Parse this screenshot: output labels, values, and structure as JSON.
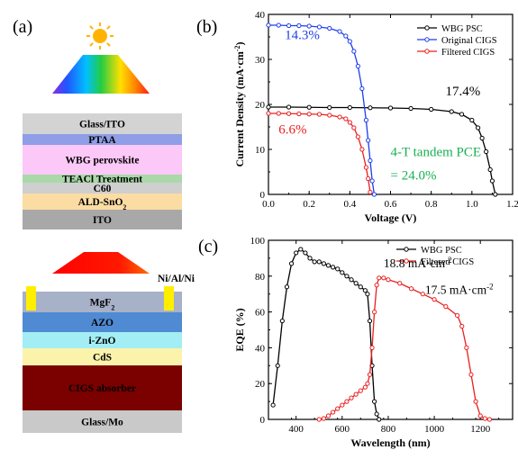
{
  "panels": {
    "a": "(a)",
    "b": "(b)",
    "c": "(c)"
  },
  "colors": {
    "wbg": "#000000",
    "original": "#1f3fe8",
    "filtered": "#e8201f",
    "tandem_text": "#17b150",
    "glass_ito": "#d3d3d3",
    "ptaa": "#8f9ee6",
    "perovskite": "#fcc8f8",
    "teacl": "#a9d9a8",
    "c60": "#cfcfcf",
    "sno2": "#fbdca3",
    "ito": "#a8a8a8",
    "mgf2": "#a7b1c8",
    "azo": "#4f8ad2",
    "izno": "#a3eef5",
    "cds": "#fbf3ac",
    "cigs": "#7b0000",
    "glass_mo": "#c9c9c9",
    "contact": "#ffee00"
  },
  "diagram": {
    "perovskite_stack": [
      {
        "label": "Glass/ITO",
        "color_key": "glass_ito"
      },
      {
        "label": "PTAA",
        "color_key": "ptaa"
      },
      {
        "label": "WBG perovskite",
        "color_key": "perovskite"
      },
      {
        "label": "TEACl Treatment",
        "color_key": "teacl"
      },
      {
        "label": "C60",
        "color_key": "c60"
      },
      {
        "label": "ALD-SnO",
        "sub": "2",
        "color_key": "sno2"
      },
      {
        "label": "ITO",
        "color_key": "ito"
      }
    ],
    "contact_label": "Ni/Al/Ni",
    "cigs_stack": [
      {
        "label": "MgF",
        "sub": "2",
        "color_key": "mgf2"
      },
      {
        "label": "AZO",
        "color_key": "azo"
      },
      {
        "label": "i-ZnO",
        "color_key": "izno"
      },
      {
        "label": "CdS",
        "color_key": "cds"
      },
      {
        "label": "CIGS absorber",
        "color_key": "cigs"
      },
      {
        "label": "Glass/Mo",
        "color_key": "glass_mo"
      }
    ]
  },
  "chart_data": [
    {
      "id": "b",
      "type": "line",
      "xlabel": "Voltage (V)",
      "ylabel": "Current Density (mA·cm",
      "ylabel_sup": "-2",
      "ylabel_end": ")",
      "xlim": [
        0.0,
        1.2
      ],
      "ylim": [
        0,
        40
      ],
      "xticks": [
        "0.0",
        "0.2",
        "0.4",
        "0.6",
        "0.8",
        "1.0",
        "1.2"
      ],
      "yticks": [
        "0",
        "10",
        "20",
        "30",
        "40"
      ],
      "legend_position": "top-right",
      "series": [
        {
          "name": "WBG PSC",
          "color_key": "wbg",
          "x": [
            0.0,
            0.1,
            0.2,
            0.3,
            0.4,
            0.5,
            0.6,
            0.7,
            0.8,
            0.9,
            0.95,
            1.0,
            1.03,
            1.05,
            1.07,
            1.09,
            1.1,
            1.115
          ],
          "y": [
            19.4,
            19.4,
            19.35,
            19.3,
            19.3,
            19.25,
            19.2,
            19.1,
            18.9,
            18.4,
            17.8,
            16.5,
            14.8,
            12.5,
            9.5,
            5.5,
            3.0,
            0.0
          ]
        },
        {
          "name": "Original CIGS",
          "color_key": "original",
          "x": [
            0.0,
            0.05,
            0.1,
            0.15,
            0.2,
            0.25,
            0.3,
            0.35,
            0.38,
            0.4,
            0.42,
            0.44,
            0.46,
            0.48,
            0.49,
            0.5,
            0.51,
            0.52
          ],
          "y": [
            37.6,
            37.6,
            37.5,
            37.5,
            37.4,
            37.2,
            36.9,
            36.2,
            35.2,
            34.0,
            31.8,
            28.5,
            23.5,
            16.5,
            12.0,
            7.5,
            3.0,
            0.0
          ]
        },
        {
          "name": "Filtered CIGS",
          "color_key": "filtered",
          "x": [
            0.0,
            0.05,
            0.1,
            0.15,
            0.2,
            0.25,
            0.3,
            0.35,
            0.38,
            0.4,
            0.42,
            0.44,
            0.46,
            0.48,
            0.49,
            0.5
          ],
          "y": [
            18.0,
            18.0,
            17.95,
            17.9,
            17.85,
            17.8,
            17.6,
            17.2,
            16.8,
            16.0,
            14.8,
            12.8,
            10.0,
            6.0,
            3.5,
            0.5
          ]
        }
      ],
      "annotations": [
        {
          "text": "14.3%",
          "color_key": "original",
          "x": 0.08,
          "y": 34.5
        },
        {
          "text": "17.4%",
          "color_key": "wbg",
          "x": 0.87,
          "y": 22.0
        },
        {
          "text": "6.6%",
          "color_key": "filtered",
          "x": 0.05,
          "y": 13.5
        },
        {
          "text": "4-T tandem PCE",
          "color_key": "tandem_text",
          "x": 0.6,
          "y": 8.5
        },
        {
          "text": "= 24.0%",
          "color_key": "tandem_text",
          "x": 0.6,
          "y": 3.3
        }
      ]
    },
    {
      "id": "c",
      "type": "line",
      "xlabel": "Wavelength (nm)",
      "ylabel": "EQE (%)",
      "xlim": [
        280,
        1340
      ],
      "ylim": [
        0,
        100
      ],
      "xticks": [
        "400",
        "600",
        "800",
        "1000",
        "1200"
      ],
      "xtick_values": [
        400,
        600,
        800,
        1000,
        1200
      ],
      "yticks": [
        "0",
        "20",
        "40",
        "60",
        "80",
        "100"
      ],
      "legend_position": "top-right",
      "series": [
        {
          "name": "WBG PSC",
          "color_key": "wbg",
          "x": [
            300,
            320,
            340,
            360,
            380,
            400,
            420,
            440,
            460,
            480,
            500,
            520,
            540,
            560,
            580,
            600,
            620,
            640,
            660,
            680,
            700,
            710,
            720,
            730,
            740,
            750,
            760
          ],
          "y": [
            8,
            30,
            55,
            74,
            87,
            93,
            95,
            93,
            90,
            88,
            88,
            87,
            86,
            85,
            84,
            82,
            80,
            78,
            76,
            74,
            72,
            70,
            55,
            30,
            10,
            3,
            0
          ]
        },
        {
          "name": "Filtered CIGS",
          "color_key": "filtered",
          "x": [
            500,
            520,
            540,
            560,
            580,
            600,
            620,
            640,
            660,
            680,
            700,
            710,
            720,
            730,
            740,
            750,
            760,
            780,
            800,
            850,
            900,
            950,
            1000,
            1050,
            1100,
            1120,
            1140,
            1160,
            1180,
            1200,
            1220,
            1240
          ],
          "y": [
            0,
            0.5,
            2,
            4,
            6,
            8,
            10,
            12,
            14,
            16,
            18,
            20,
            25,
            40,
            60,
            75,
            79,
            79,
            78,
            76,
            73,
            70,
            67,
            63,
            58,
            52,
            40,
            25,
            10,
            2,
            0.5,
            0
          ]
        }
      ],
      "annotations": [
        {
          "text": "18.8 mA·cm",
          "sup": "-2",
          "color_key": "wbg",
          "x": 780,
          "y": 85
        },
        {
          "text": "17.5 mA·cm",
          "sup": "-2",
          "color_key": "wbg",
          "x": 960,
          "y": 70
        }
      ]
    }
  ]
}
